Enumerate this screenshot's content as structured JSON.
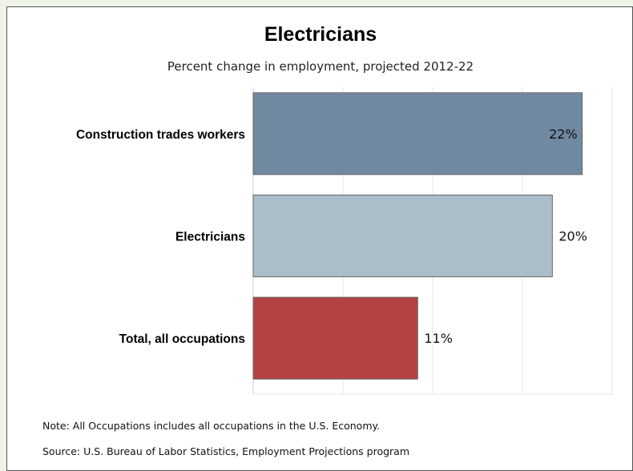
{
  "chart_data": {
    "type": "bar",
    "orientation": "horizontal",
    "title": "Electricians",
    "subtitle": "Percent change in employment, projected 2012-22",
    "categories": [
      "Construction trades workers",
      "Electricians",
      "Total, all occupations"
    ],
    "values": [
      22,
      20,
      11
    ],
    "value_labels": [
      "22%",
      "20%",
      "11%"
    ],
    "colors": [
      "#7189a0",
      "#abbdc9",
      "#b54142"
    ],
    "xlim": [
      0,
      24
    ],
    "grid": true,
    "legend": "none"
  },
  "footer": {
    "note": "Note: All Occupations includes all occupations in the U.S. Economy.",
    "source": "Source: U.S. Bureau of Labor Statistics, Employment Projections program"
  }
}
